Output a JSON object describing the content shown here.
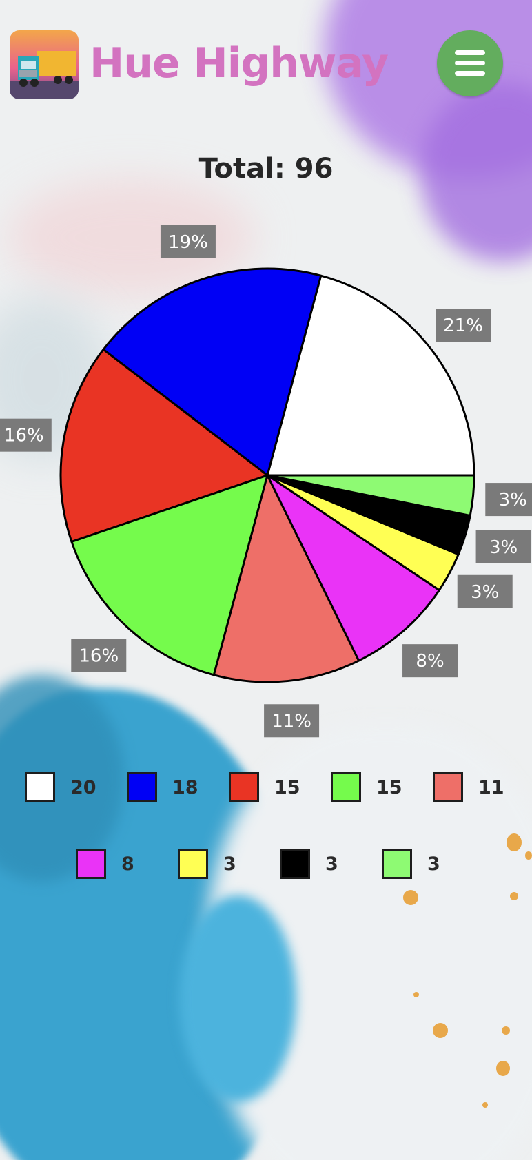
{
  "header": {
    "app_title": "Hue Highway",
    "logo_icon": "truck-icon",
    "menu_icon": "hamburger-menu-icon",
    "colors": {
      "title": "#d373c0",
      "menu_button": "#63ad5e"
    }
  },
  "total_label": "Total: 96",
  "chart_data": {
    "type": "pie",
    "title": "",
    "start_angle_deg": 0,
    "direction": "counterclockwise",
    "slices": [
      {
        "value": 20,
        "percent_label": "21%",
        "color": "#ffffff"
      },
      {
        "value": 18,
        "percent_label": "19%",
        "color": "#0000f5"
      },
      {
        "value": 15,
        "percent_label": "16%",
        "color": "#e93424"
      },
      {
        "value": 15,
        "percent_label": "16%",
        "color": "#75fb4c"
      },
      {
        "value": 11,
        "percent_label": "11%",
        "color": "#ee6f68"
      },
      {
        "value": 8,
        "percent_label": "8%",
        "color": "#ea33f7"
      },
      {
        "value": 3,
        "percent_label": "3%",
        "color": "#ffff54"
      },
      {
        "value": 3,
        "percent_label": "3%",
        "color": "#000000"
      },
      {
        "value": 3,
        "percent_label": "3%",
        "color": "#8efa73"
      }
    ],
    "legend_placement": "bottom"
  }
}
